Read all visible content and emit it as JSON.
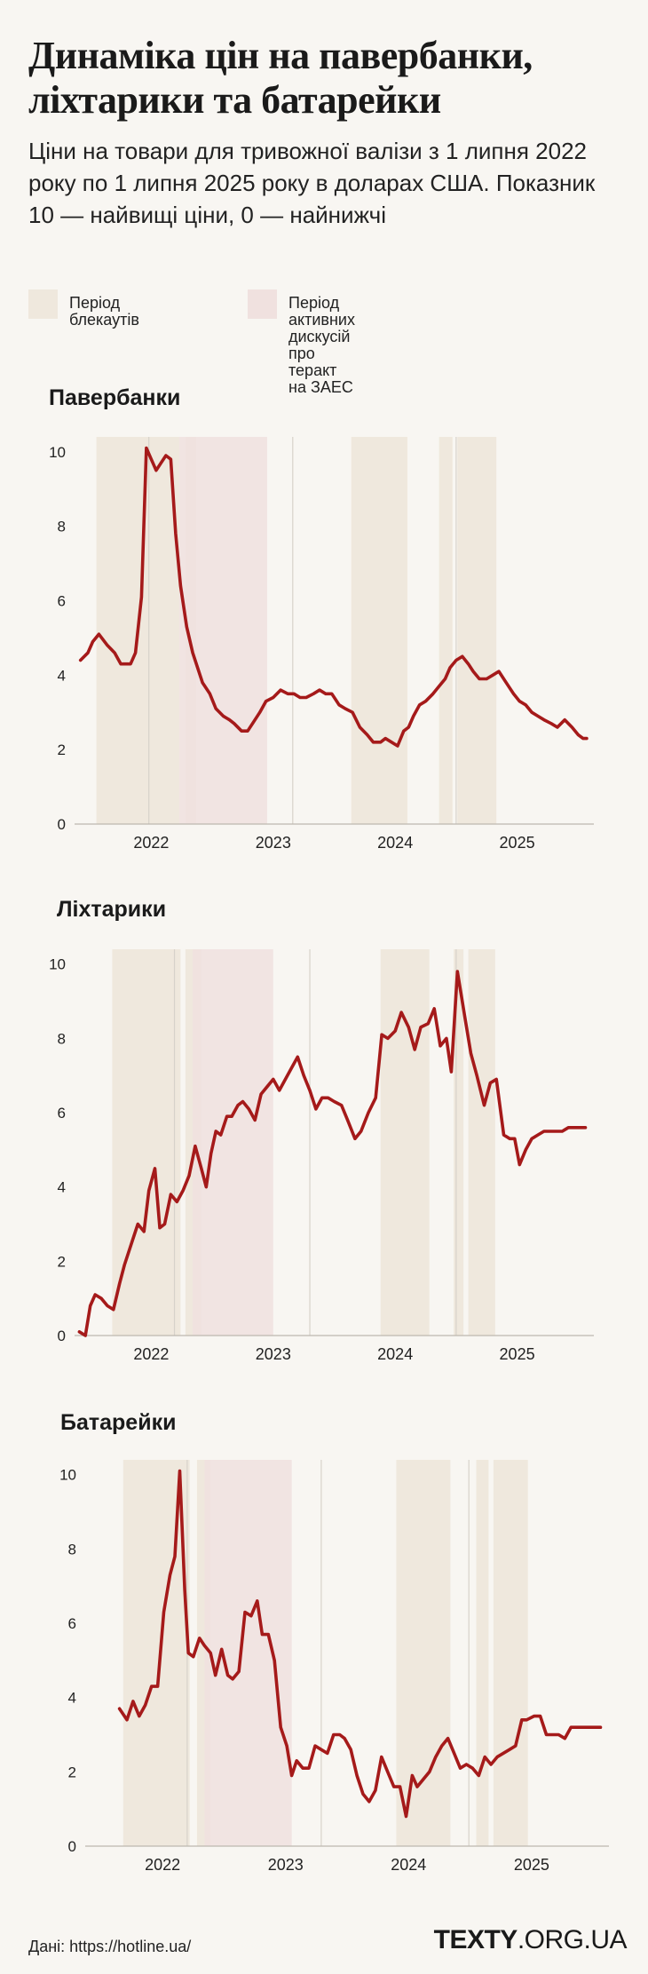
{
  "header": {
    "title": "Динаміка цін на павербанки, ліхтарики та батарейки",
    "subtitle": "Ціни на товари для тривожної валізи з 1 липня 2022 року по 1 липня 2025 року в доларах США. Показник 10 — найвищі ціни, 0 — найнижчі"
  },
  "legend": {
    "blackout_label": "Період  блекаутів",
    "zaes_label": "Період активних дискусій\n про теракт на ЗАЕС"
  },
  "colors": {
    "background": "#f8f6f2",
    "blackout": "#efe8dd",
    "zaes": "#f0e1df",
    "line": "#a51a1a"
  },
  "chart_data": [
    {
      "type": "line",
      "title": "Павербанки",
      "ylim": [
        0,
        10.4
      ],
      "yticks": [
        "0",
        "2",
        "4",
        "6",
        "8",
        "10"
      ],
      "xticks": [
        {
          "label": "2022",
          "x": 2022.5
        },
        {
          "label": "2023",
          "x": 2023.5
        },
        {
          "label": "2024",
          "x": 2024.5
        },
        {
          "label": "2025",
          "x": 2025.5
        }
      ],
      "xlim": [
        2021.9,
        2026.1
      ],
      "blackouts": [
        [
          2022.05,
          2022.73
        ],
        [
          2022.78,
          2022.87
        ],
        [
          2024.14,
          2024.6
        ],
        [
          2024.86,
          2024.97
        ],
        [
          2025.01,
          2025.33
        ]
      ],
      "zaes": [
        [
          2022.73,
          2023.45
        ]
      ],
      "dividers": [
        2022.48,
        2023.66,
        2025.0
      ],
      "x": [
        2021.92,
        2021.98,
        2022.02,
        2022.07,
        2022.14,
        2022.2,
        2022.25,
        2022.29,
        2022.33,
        2022.37,
        2022.42,
        2022.46,
        2022.5,
        2022.54,
        2022.58,
        2022.62,
        2022.66,
        2022.7,
        2022.74,
        2022.79,
        2022.84,
        2022.88,
        2022.92,
        2022.98,
        2023.03,
        2023.09,
        2023.14,
        2023.18,
        2023.24,
        2023.29,
        2023.33,
        2023.39,
        2023.44,
        2023.5,
        2023.56,
        2023.62,
        2023.67,
        2023.72,
        2023.77,
        2023.83,
        2023.88,
        2023.93,
        2023.98,
        2024.04,
        2024.09,
        2024.15,
        2024.21,
        2024.27,
        2024.32,
        2024.38,
        2024.42,
        2024.47,
        2024.52,
        2024.57,
        2024.61,
        2024.65,
        2024.7,
        2024.75,
        2024.81,
        2024.86,
        2024.91,
        2024.95,
        2025.0,
        2025.05,
        2025.1,
        2025.14,
        2025.19,
        2025.25,
        2025.3,
        2025.35,
        2025.41,
        2025.47,
        2025.52,
        2025.57,
        2025.62,
        2025.67,
        2025.72,
        2025.78,
        2025.83,
        2025.89,
        2025.95,
        2026.0,
        2026.04,
        2026.07
      ],
      "values": [
        4.4,
        4.6,
        4.9,
        5.1,
        4.8,
        4.6,
        4.3,
        4.3,
        4.3,
        4.6,
        6.1,
        10.1,
        9.8,
        9.5,
        9.7,
        9.9,
        9.8,
        7.8,
        6.4,
        5.3,
        4.6,
        4.2,
        3.8,
        3.5,
        3.1,
        2.9,
        2.8,
        2.7,
        2.5,
        2.5,
        2.7,
        3.0,
        3.3,
        3.4,
        3.6,
        3.5,
        3.5,
        3.4,
        3.4,
        3.5,
        3.6,
        3.5,
        3.5,
        3.2,
        3.1,
        3.0,
        2.6,
        2.4,
        2.2,
        2.2,
        2.3,
        2.2,
        2.1,
        2.5,
        2.6,
        2.9,
        3.2,
        3.3,
        3.5,
        3.7,
        3.9,
        4.2,
        4.4,
        4.5,
        4.3,
        4.1,
        3.9,
        3.9,
        4.0,
        4.1,
        3.8,
        3.5,
        3.3,
        3.2,
        3.0,
        2.9,
        2.8,
        2.7,
        2.6,
        2.8,
        2.6,
        2.4,
        2.3,
        2.3
      ]
    },
    {
      "type": "line",
      "title": "Ліхтарики",
      "ylim": [
        0,
        10.4
      ],
      "yticks": [
        "0",
        "2",
        "4",
        "6",
        "8",
        "10"
      ],
      "xticks": [
        {
          "label": "2022",
          "x": 2022.5
        },
        {
          "label": "2023",
          "x": 2023.5
        },
        {
          "label": "2024",
          "x": 2024.5
        },
        {
          "label": "2025",
          "x": 2025.5
        }
      ],
      "xlim": [
        2021.9,
        2026.1
      ],
      "blackouts": [
        [
          2022.18,
          2022.74
        ],
        [
          2022.78,
          2022.91
        ],
        [
          2024.38,
          2024.78
        ],
        [
          2024.98,
          2025.06
        ],
        [
          2025.1,
          2025.32
        ]
      ],
      "zaes": [
        [
          2022.84,
          2023.5
        ]
      ],
      "dividers": [
        2022.69,
        2023.8,
        2025.0
      ],
      "x": [
        2021.91,
        2021.96,
        2022.0,
        2022.04,
        2022.09,
        2022.14,
        2022.19,
        2022.24,
        2022.28,
        2022.34,
        2022.39,
        2022.44,
        2022.48,
        2022.53,
        2022.57,
        2022.61,
        2022.66,
        2022.71,
        2022.76,
        2022.81,
        2022.86,
        2022.91,
        2022.95,
        2022.99,
        2023.03,
        2023.07,
        2023.12,
        2023.16,
        2023.21,
        2023.25,
        2023.3,
        2023.35,
        2023.4,
        2023.45,
        2023.5,
        2023.55,
        2023.6,
        2023.65,
        2023.7,
        2023.75,
        2023.8,
        2023.85,
        2023.9,
        2023.95,
        2024.0,
        2024.06,
        2024.11,
        2024.17,
        2024.22,
        2024.28,
        2024.34,
        2024.39,
        2024.44,
        2024.5,
        2024.55,
        2024.61,
        2024.66,
        2024.71,
        2024.77,
        2024.82,
        2024.87,
        2024.92,
        2024.96,
        2025.01,
        2025.07,
        2025.12,
        2025.17,
        2025.23,
        2025.28,
        2025.33,
        2025.39,
        2025.44,
        2025.48,
        2025.52,
        2025.57,
        2025.62,
        2025.67,
        2025.72,
        2025.77,
        2025.82,
        2025.87,
        2025.92,
        2025.97,
        2026.02,
        2026.06
      ],
      "values": [
        0.1,
        0.0,
        0.8,
        1.1,
        1.0,
        0.8,
        0.7,
        1.4,
        1.9,
        2.5,
        3.0,
        2.8,
        3.9,
        4.5,
        2.9,
        3.0,
        3.8,
        3.6,
        3.9,
        4.3,
        5.1,
        4.5,
        4.0,
        4.9,
        5.5,
        5.4,
        5.9,
        5.9,
        6.2,
        6.3,
        6.1,
        5.8,
        6.5,
        6.7,
        6.9,
        6.6,
        6.9,
        7.2,
        7.5,
        7.0,
        6.6,
        6.1,
        6.4,
        6.4,
        6.3,
        6.2,
        5.8,
        5.3,
        5.5,
        6.0,
        6.4,
        8.1,
        8.0,
        8.2,
        8.7,
        8.3,
        7.7,
        8.3,
        8.4,
        8.8,
        7.8,
        8.0,
        7.1,
        9.8,
        8.6,
        7.6,
        7.0,
        6.2,
        6.8,
        6.9,
        5.4,
        5.3,
        5.3,
        4.6,
        5.0,
        5.3,
        5.4,
        5.5,
        5.5,
        5.5,
        5.5,
        5.6,
        5.6,
        5.6,
        5.6
      ]
    },
    {
      "type": "line",
      "title": "Батарейки",
      "ylim": [
        0,
        10.4
      ],
      "yticks": [
        "0",
        "2",
        "4",
        "6",
        "8",
        "10"
      ],
      "xticks": [
        {
          "label": "2022",
          "x": 2022.5
        },
        {
          "label": "2023",
          "x": 2023.5
        },
        {
          "label": "2024",
          "x": 2024.5
        },
        {
          "label": "2025",
          "x": 2025.5
        }
      ],
      "xlim": [
        2021.9,
        2026.1
      ],
      "blackouts": [
        [
          2022.18,
          2022.72
        ],
        [
          2022.78,
          2022.89
        ],
        [
          2024.4,
          2024.84
        ],
        [
          2025.05,
          2025.15
        ],
        [
          2025.19,
          2025.47
        ]
      ],
      "zaes": [
        [
          2022.84,
          2023.55
        ]
      ],
      "dividers": [
        2022.7,
        2023.79,
        2024.99
      ],
      "x": [
        2022.15,
        2022.21,
        2022.26,
        2022.31,
        2022.36,
        2022.41,
        2022.46,
        2022.51,
        2022.56,
        2022.6,
        2022.64,
        2022.68,
        2022.71,
        2022.75,
        2022.8,
        2022.84,
        2022.89,
        2022.93,
        2022.98,
        2023.03,
        2023.07,
        2023.12,
        2023.17,
        2023.22,
        2023.27,
        2023.31,
        2023.36,
        2023.41,
        2023.46,
        2023.51,
        2023.55,
        2023.59,
        2023.64,
        2023.69,
        2023.74,
        2023.79,
        2023.84,
        2023.89,
        2023.94,
        2023.98,
        2024.03,
        2024.08,
        2024.13,
        2024.18,
        2024.23,
        2024.28,
        2024.33,
        2024.38,
        2024.43,
        2024.48,
        2024.53,
        2024.57,
        2024.62,
        2024.67,
        2024.72,
        2024.77,
        2024.82,
        2024.87,
        2024.92,
        2024.97,
        2025.02,
        2025.07,
        2025.12,
        2025.17,
        2025.22,
        2025.27,
        2025.32,
        2025.37,
        2025.42,
        2025.46,
        2025.52,
        2025.57,
        2025.62,
        2025.67,
        2025.72,
        2025.77,
        2025.82,
        2025.87,
        2025.92,
        2025.97,
        2026.02,
        2026.06
      ],
      "values": [
        3.7,
        3.4,
        3.9,
        3.5,
        3.8,
        4.3,
        4.3,
        6.3,
        7.3,
        7.8,
        10.1,
        6.9,
        5.2,
        5.1,
        5.6,
        5.4,
        5.2,
        4.6,
        5.3,
        4.6,
        4.5,
        4.7,
        6.3,
        6.2,
        6.6,
        5.7,
        5.7,
        5.0,
        3.2,
        2.7,
        1.9,
        2.3,
        2.1,
        2.1,
        2.7,
        2.6,
        2.5,
        3.0,
        3.0,
        2.9,
        2.6,
        1.9,
        1.4,
        1.2,
        1.5,
        2.4,
        2.0,
        1.6,
        1.6,
        0.8,
        1.9,
        1.6,
        1.8,
        2.0,
        2.4,
        2.7,
        2.9,
        2.5,
        2.1,
        2.2,
        2.1,
        1.9,
        2.4,
        2.2,
        2.4,
        2.5,
        2.6,
        2.7,
        3.4,
        3.4,
        3.5,
        3.5,
        3.0,
        3.0,
        3.0,
        2.9,
        3.2,
        3.2,
        3.2,
        3.2,
        3.2,
        3.2
      ]
    }
  ],
  "footer": {
    "source": "Дані: https://hotline.ua/",
    "logo_main": "TEXTY",
    "logo_suffix": ".ORG.UA"
  }
}
